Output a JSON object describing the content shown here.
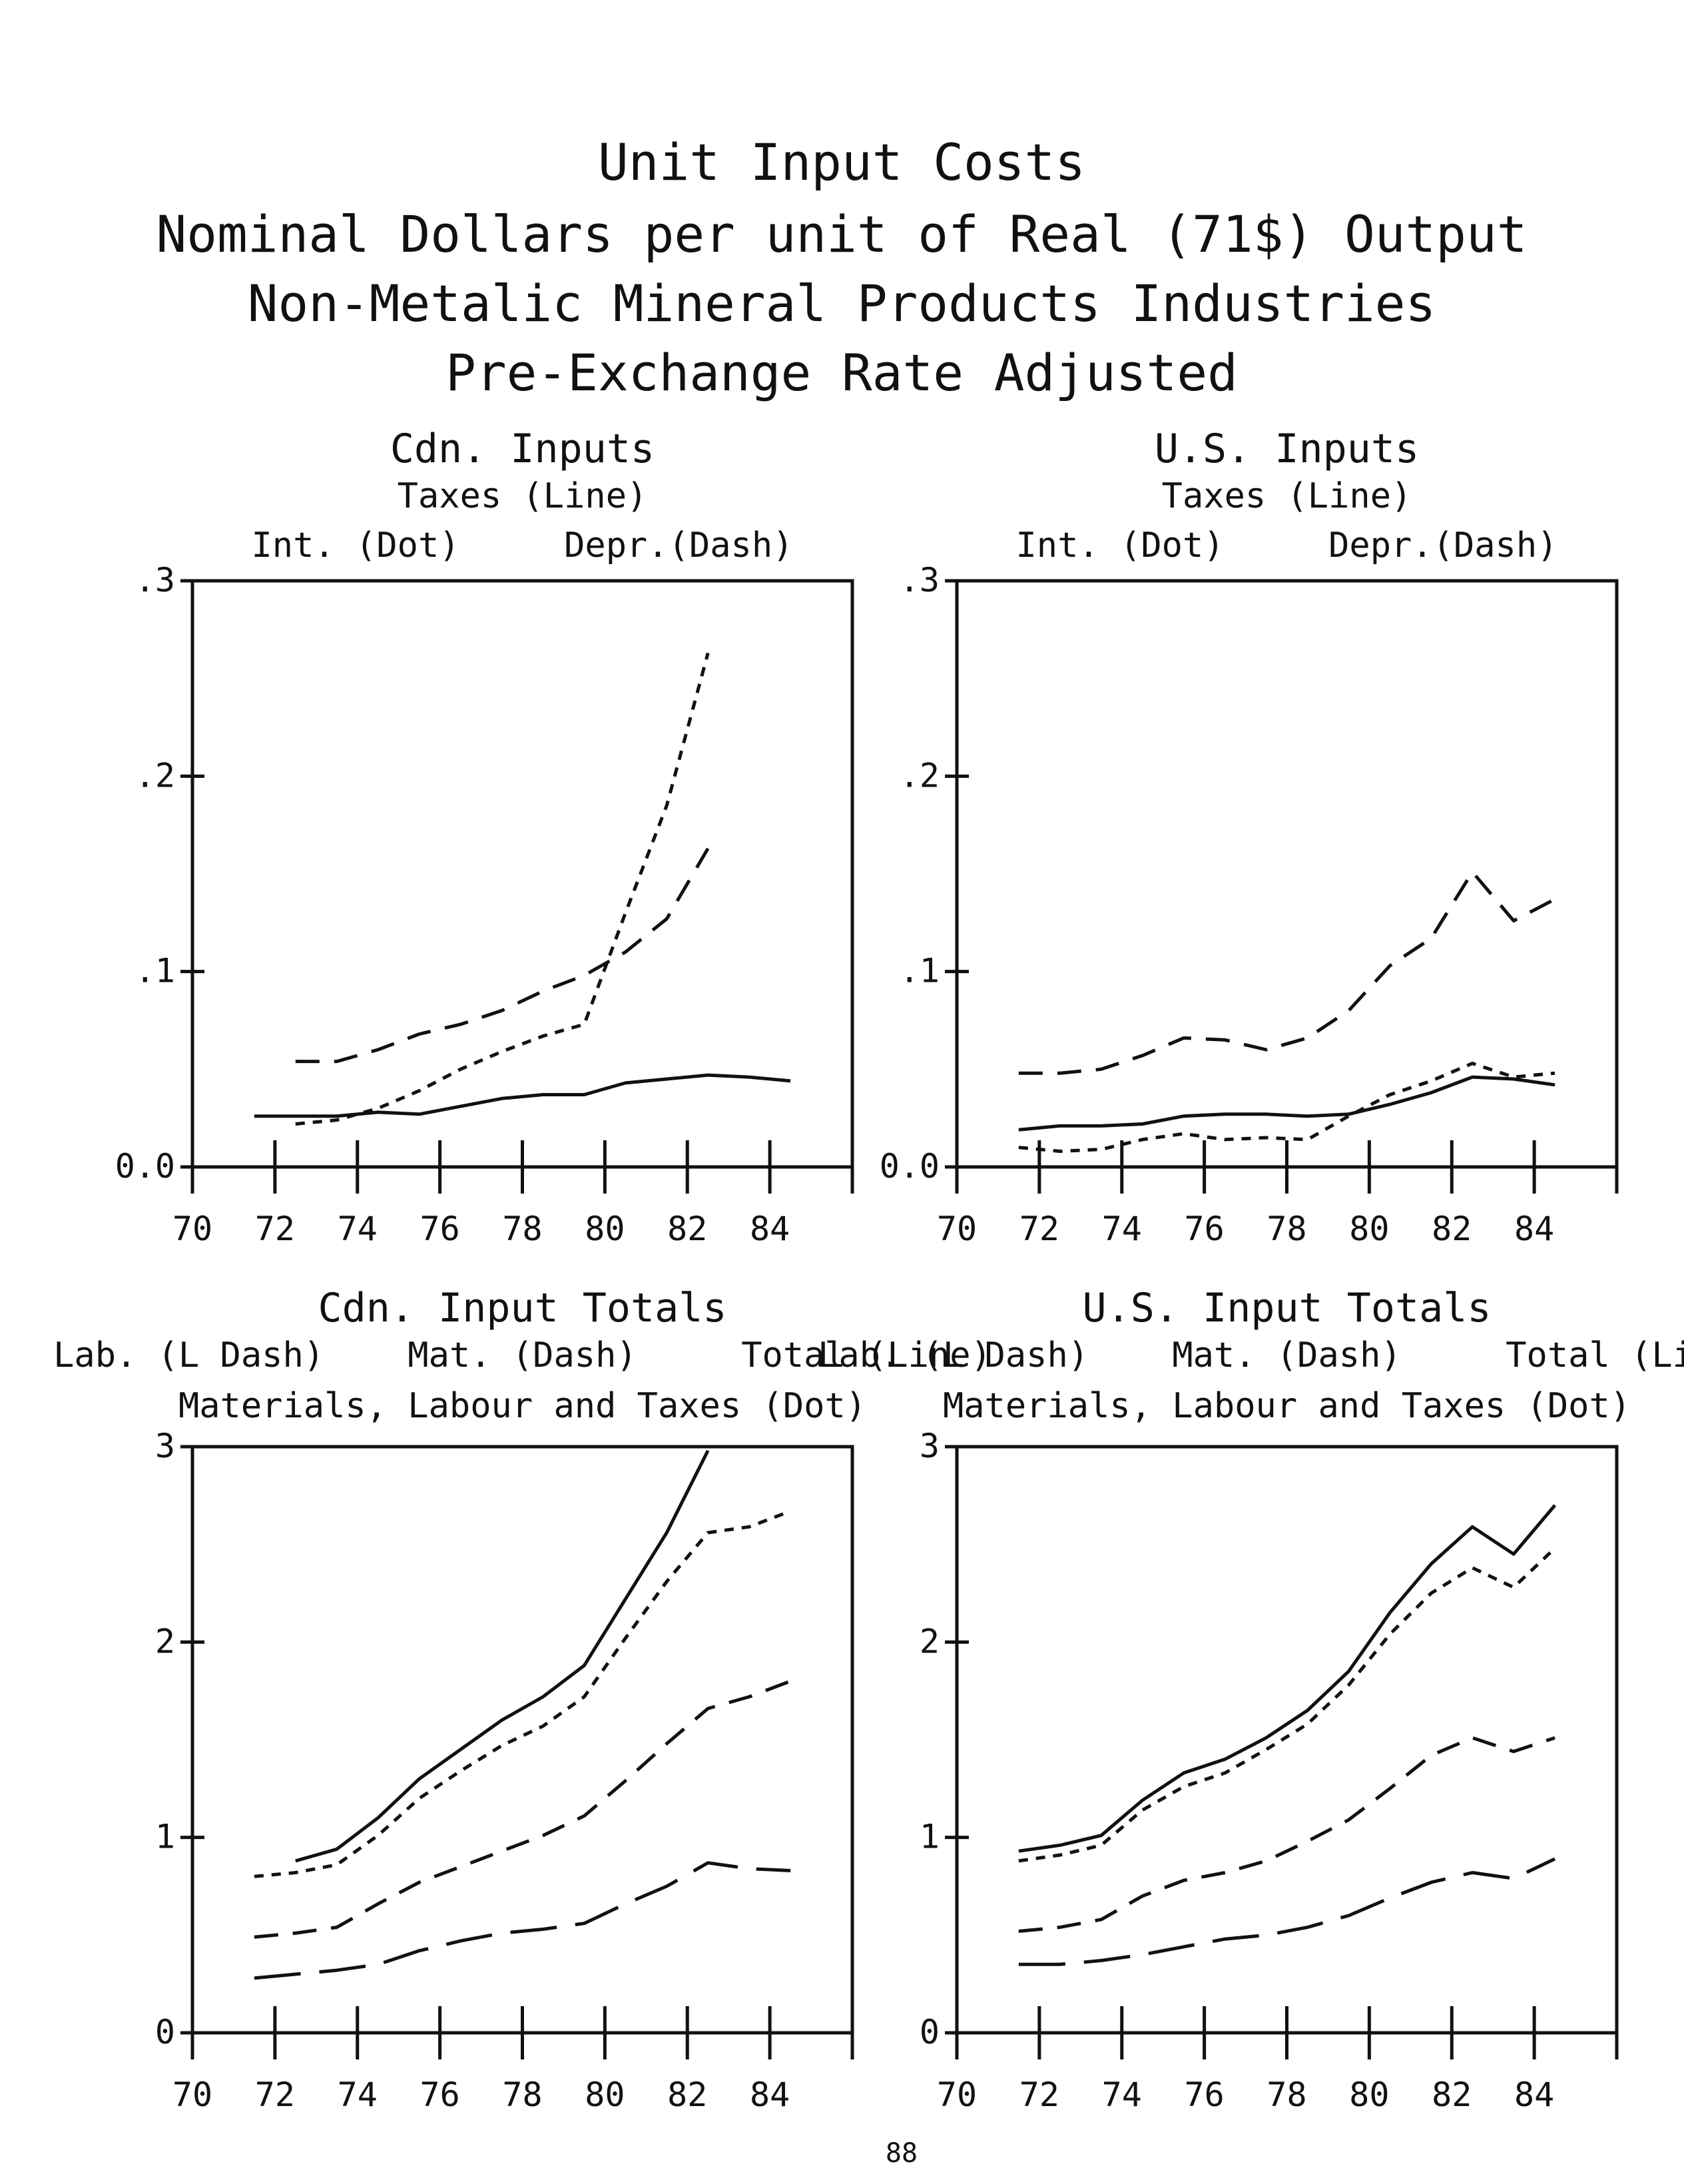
{
  "page": {
    "title_lines": [
      "Unit Input Costs",
      "Nominal Dollars per unit of Real (71$) Output",
      "Non-Metalic Mineral Products Industries",
      "Pre-Exchange Rate Adjusted"
    ],
    "page_number": "88"
  },
  "chart_data": [
    {
      "type": "line",
      "title": "Cdn. Inputs",
      "legend_lines": [
        "Taxes (Line)",
        "Int. (Dot)     Depr.(Dash)"
      ],
      "xlim": [
        70,
        86
      ],
      "ylim": [
        0,
        0.3
      ],
      "xticks": [
        70,
        72,
        74,
        76,
        78,
        80,
        82,
        84
      ],
      "xtick_labels": [
        "70",
        "72",
        "74",
        "76",
        "78",
        "80",
        "82",
        "84"
      ],
      "yticks": [
        0,
        0.1,
        0.2,
        0.3
      ],
      "ytick_labels": [
        "0.0",
        ".1",
        ".2",
        ".3"
      ],
      "series": [
        {
          "style": "solid",
          "x": [
            71.5,
            72.5,
            73.5,
            74.5,
            75.5,
            76.5,
            77.5,
            78.5,
            79.5,
            80.5,
            81.5,
            82.5,
            83.5,
            84.5
          ],
          "values": [
            0.026,
            0.026,
            0.026,
            0.028,
            0.027,
            0.031,
            0.035,
            0.037,
            0.037,
            0.043,
            0.045,
            0.047,
            0.046,
            0.044
          ]
        },
        {
          "style": "dotted",
          "x": [
            72.5,
            73.5,
            74.5,
            75.5,
            76.5,
            77.5,
            78.5,
            79.5,
            80.5,
            81.5,
            82.5
          ],
          "values": [
            0.022,
            0.024,
            0.03,
            0.039,
            0.05,
            0.059,
            0.067,
            0.073,
            0.13,
            0.185,
            0.263
          ]
        },
        {
          "style": "dashed",
          "x": [
            72.5,
            73.5,
            74.5,
            75.5,
            76.5,
            77.5,
            78.5,
            79.5,
            80.5,
            81.5,
            82.5
          ],
          "values": [
            0.054,
            0.054,
            0.06,
            0.068,
            0.073,
            0.08,
            0.09,
            0.098,
            0.11,
            0.127,
            0.163
          ]
        }
      ]
    },
    {
      "type": "line",
      "title": "U.S. Inputs",
      "legend_lines": [
        "Taxes (Line)",
        "Int. (Dot)     Depr.(Dash)"
      ],
      "xlim": [
        70,
        86
      ],
      "ylim": [
        0,
        0.3
      ],
      "xticks": [
        70,
        72,
        74,
        76,
        78,
        80,
        82,
        84
      ],
      "xtick_labels": [
        "70",
        "72",
        "74",
        "76",
        "78",
        "80",
        "82",
        "84"
      ],
      "yticks": [
        0,
        0.1,
        0.2,
        0.3
      ],
      "ytick_labels": [
        "0.0",
        ".1",
        ".2",
        ".3"
      ],
      "series": [
        {
          "style": "solid",
          "x": [
            71.5,
            72.5,
            73.5,
            74.5,
            75.5,
            76.5,
            77.5,
            78.5,
            79.5,
            80.5,
            81.5,
            82.5,
            83.5,
            84.5
          ],
          "values": [
            0.019,
            0.021,
            0.021,
            0.022,
            0.026,
            0.027,
            0.027,
            0.026,
            0.027,
            0.032,
            0.038,
            0.046,
            0.045,
            0.042
          ]
        },
        {
          "style": "dotted",
          "x": [
            71.5,
            72.5,
            73.5,
            74.5,
            75.5,
            76.5,
            77.5,
            78.5,
            79.5,
            80.5,
            81.5,
            82.5,
            83.5,
            84.5
          ],
          "values": [
            0.01,
            0.008,
            0.009,
            0.014,
            0.017,
            0.014,
            0.015,
            0.014,
            0.026,
            0.037,
            0.044,
            0.053,
            0.046,
            0.048
          ]
        },
        {
          "style": "dashed",
          "x": [
            71.5,
            72.5,
            73.5,
            74.5,
            75.5,
            76.5,
            77.5,
            78.5,
            79.5,
            80.5,
            81.5,
            82.5,
            83.5,
            84.5
          ],
          "values": [
            0.048,
            0.048,
            0.05,
            0.057,
            0.066,
            0.065,
            0.06,
            0.066,
            0.08,
            0.103,
            0.117,
            0.151,
            0.126,
            0.137
          ]
        }
      ]
    },
    {
      "type": "line",
      "title": "Cdn. Input Totals",
      "legend_lines": [
        "Lab. (L Dash)    Mat. (Dash)     Total (Line)",
        "Materials, Labour and Taxes (Dot)"
      ],
      "xlim": [
        70,
        86
      ],
      "ylim": [
        0,
        3
      ],
      "xticks": [
        70,
        72,
        74,
        76,
        78,
        80,
        82,
        84
      ],
      "xtick_labels": [
        "70",
        "72",
        "74",
        "76",
        "78",
        "80",
        "82",
        "84"
      ],
      "yticks": [
        0,
        1,
        2,
        3
      ],
      "ytick_labels": [
        "0",
        "1",
        "2",
        "3"
      ],
      "series": [
        {
          "style": "longdash",
          "x": [
            71.5,
            72.5,
            73.5,
            74.5,
            75.5,
            76.5,
            77.5,
            78.5,
            79.5,
            80.5,
            81.5,
            82.5,
            83.5,
            84.5
          ],
          "values": [
            0.28,
            0.3,
            0.32,
            0.35,
            0.42,
            0.47,
            0.51,
            0.53,
            0.56,
            0.66,
            0.75,
            0.87,
            0.84,
            0.83
          ]
        },
        {
          "style": "dashed",
          "x": [
            71.5,
            72.5,
            73.5,
            74.5,
            75.5,
            76.5,
            77.5,
            78.5,
            79.5,
            80.5,
            81.5,
            82.5,
            83.5,
            84.5
          ],
          "values": [
            0.49,
            0.51,
            0.54,
            0.66,
            0.77,
            0.85,
            0.93,
            1.01,
            1.11,
            1.29,
            1.48,
            1.66,
            1.72,
            1.8
          ]
        },
        {
          "style": "dotted",
          "x": [
            71.5,
            72.5,
            73.5,
            74.5,
            75.5,
            76.5,
            77.5,
            78.5,
            79.5,
            80.5,
            81.5,
            82.5,
            83.5,
            84.5
          ],
          "values": [
            0.8,
            0.82,
            0.86,
            1.01,
            1.2,
            1.34,
            1.47,
            1.57,
            1.72,
            2.02,
            2.31,
            2.56,
            2.59,
            2.67
          ]
        },
        {
          "style": "solid",
          "x": [
            72.5,
            73.5,
            74.5,
            75.5,
            76.5,
            77.5,
            78.5,
            79.5,
            80.5,
            81.5,
            82.5
          ],
          "values": [
            0.88,
            0.94,
            1.1,
            1.3,
            1.45,
            1.6,
            1.72,
            1.88,
            2.22,
            2.56,
            2.98
          ]
        }
      ]
    },
    {
      "type": "line",
      "title": "U.S. Input Totals",
      "legend_lines": [
        "Lab. (L Dash)    Mat. (Dash)     Total (Line)",
        "Materials, Labour and Taxes (Dot)"
      ],
      "xlim": [
        70,
        86
      ],
      "ylim": [
        0,
        3
      ],
      "xticks": [
        70,
        72,
        74,
        76,
        78,
        80,
        82,
        84
      ],
      "xtick_labels": [
        "70",
        "72",
        "74",
        "76",
        "78",
        "80",
        "82",
        "84"
      ],
      "yticks": [
        0,
        1,
        2,
        3
      ],
      "ytick_labels": [
        "0",
        "1",
        "2",
        "3"
      ],
      "series": [
        {
          "style": "longdash",
          "x": [
            71.5,
            72.5,
            73.5,
            74.5,
            75.5,
            76.5,
            77.5,
            78.5,
            79.5,
            80.5,
            81.5,
            82.5,
            83.5,
            84.5
          ],
          "values": [
            0.35,
            0.35,
            0.37,
            0.4,
            0.44,
            0.48,
            0.5,
            0.54,
            0.6,
            0.69,
            0.77,
            0.82,
            0.79,
            0.89
          ]
        },
        {
          "style": "dashed",
          "x": [
            71.5,
            72.5,
            73.5,
            74.5,
            75.5,
            76.5,
            77.5,
            78.5,
            79.5,
            80.5,
            81.5,
            82.5,
            83.5,
            84.5
          ],
          "values": [
            0.52,
            0.54,
            0.58,
            0.7,
            0.78,
            0.82,
            0.88,
            0.98,
            1.09,
            1.25,
            1.42,
            1.51,
            1.44,
            1.51
          ]
        },
        {
          "style": "dotted",
          "x": [
            71.5,
            72.5,
            73.5,
            74.5,
            75.5,
            76.5,
            77.5,
            78.5,
            79.5,
            80.5,
            81.5,
            82.5,
            83.5,
            84.5
          ],
          "values": [
            0.88,
            0.91,
            0.96,
            1.14,
            1.26,
            1.33,
            1.45,
            1.58,
            1.78,
            2.04,
            2.25,
            2.38,
            2.28,
            2.48
          ]
        },
        {
          "style": "solid",
          "x": [
            71.5,
            72.5,
            73.5,
            74.5,
            75.5,
            76.5,
            77.5,
            78.5,
            79.5,
            80.5,
            81.5,
            82.5,
            83.5,
            84.5
          ],
          "values": [
            0.93,
            0.96,
            1.01,
            1.19,
            1.33,
            1.4,
            1.51,
            1.65,
            1.85,
            2.15,
            2.4,
            2.59,
            2.45,
            2.7
          ]
        }
      ]
    }
  ]
}
